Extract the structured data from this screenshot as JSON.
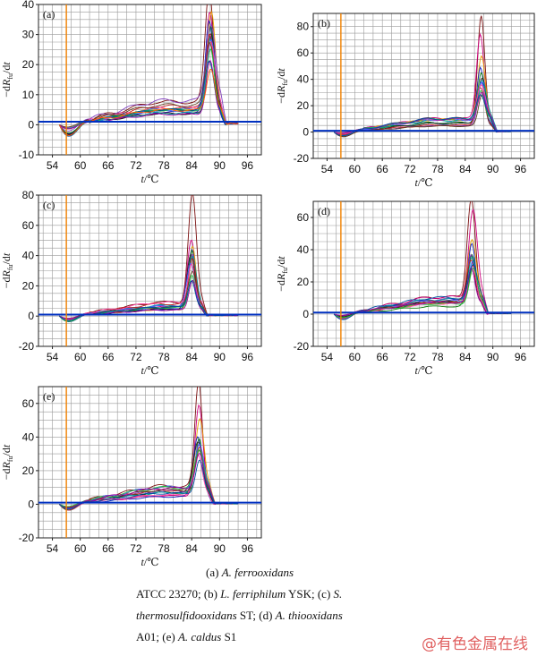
{
  "chart_data": [
    {
      "type": "line",
      "panel_label": "(a)",
      "xlabel_var": "t",
      "xlabel_unit": "/℃",
      "ylabel_prefix": "−d",
      "ylabel_var": "R",
      "ylabel_sub": "fu",
      "ylabel_suffix": "/dt",
      "x_ticks": [
        54,
        60,
        66,
        72,
        78,
        84,
        90,
        96
      ],
      "y_ticks": [
        -10,
        0,
        10,
        20,
        30,
        40
      ],
      "xlim": [
        51,
        99
      ],
      "ylim": [
        -10,
        40
      ],
      "threshold_y": 1,
      "marker_x": 57,
      "plateau": 6,
      "peak_x": 88,
      "peak_heights": [
        37,
        34,
        32,
        30,
        28,
        27,
        26,
        25,
        24,
        23,
        22,
        21,
        20,
        18,
        16,
        14
      ],
      "peak_width": 1.3,
      "end_x": 94
    },
    {
      "type": "line",
      "panel_label": "(b)",
      "xlabel_var": "t",
      "xlabel_unit": "/℃",
      "ylabel_prefix": "−d",
      "ylabel_var": "R",
      "ylabel_sub": "fu",
      "ylabel_suffix": "/dt",
      "x_ticks": [
        54,
        60,
        66,
        72,
        78,
        84,
        90,
        96
      ],
      "y_ticks": [
        -20,
        0,
        20,
        40,
        60,
        80
      ],
      "xlim": [
        51,
        99
      ],
      "ylim": [
        -20,
        90
      ],
      "threshold_y": 1,
      "marker_x": 57,
      "plateau": 8,
      "peak_x": 87.5,
      "peak_heights": [
        78,
        65,
        48,
        42,
        38,
        35,
        33,
        31,
        29,
        28,
        26,
        24,
        22,
        20,
        18
      ],
      "peak_width": 1.2,
      "end_x": 94
    },
    {
      "type": "line",
      "panel_label": "(c)",
      "xlabel_var": "t",
      "xlabel_unit": "/℃",
      "ylabel_prefix": "−d",
      "ylabel_var": "R",
      "ylabel_sub": "fu",
      "ylabel_suffix": "/dt",
      "x_ticks": [
        54,
        60,
        66,
        72,
        78,
        84,
        90,
        96
      ],
      "y_ticks": [
        -20,
        0,
        20,
        40,
        60,
        80
      ],
      "xlim": [
        51,
        99
      ],
      "ylim": [
        -20,
        80
      ],
      "threshold_y": 1,
      "marker_x": 57,
      "plateau": 7,
      "peak_x": 84,
      "peak_heights": [
        72,
        44,
        42,
        40,
        38,
        36,
        34,
        32,
        30,
        28,
        26,
        24,
        22,
        20,
        18
      ],
      "peak_width": 1.1,
      "end_x": 94
    },
    {
      "type": "line",
      "panel_label": "(d)",
      "xlabel_var": "t",
      "xlabel_unit": "/℃",
      "ylabel_prefix": "−d",
      "ylabel_var": "R",
      "ylabel_sub": "fu",
      "ylabel_suffix": "/dt",
      "x_ticks": [
        54,
        60,
        66,
        72,
        78,
        84,
        90,
        96
      ],
      "y_ticks": [
        -20,
        0,
        20,
        40,
        60
      ],
      "xlim": [
        51,
        99
      ],
      "ylim": [
        -20,
        70
      ],
      "threshold_y": 1,
      "marker_x": 57,
      "plateau": 8,
      "peak_x": 85.5,
      "peak_heights": [
        62,
        55,
        40,
        36,
        32,
        30,
        28,
        27,
        26,
        25,
        24,
        23,
        22,
        21,
        20
      ],
      "peak_width": 1.2,
      "end_x": 94
    },
    {
      "type": "line",
      "panel_label": "(e)",
      "xlabel_var": "t",
      "xlabel_unit": "/℃",
      "ylabel_prefix": "−d",
      "ylabel_var": "R",
      "ylabel_sub": "fu",
      "ylabel_suffix": "/dt",
      "x_ticks": [
        54,
        60,
        66,
        72,
        78,
        84,
        90,
        96
      ],
      "y_ticks": [
        -20,
        0,
        20,
        40,
        60
      ],
      "xlim": [
        51,
        99
      ],
      "ylim": [
        -20,
        70
      ],
      "threshold_y": 1,
      "marker_x": 57,
      "plateau": 8,
      "peak_x": 85.5,
      "peak_heights": [
        62,
        54,
        40,
        36,
        32,
        30,
        28,
        27,
        26,
        25,
        24,
        23,
        22,
        21,
        20
      ],
      "peak_width": 1.2,
      "end_x": 94
    }
  ],
  "styles": {
    "curve_colors": [
      "#7a1010",
      "#d00080",
      "#e8a000",
      "#1020c0",
      "#108010",
      "#202020",
      "#8040c0",
      "#00a0a0",
      "#c02020",
      "#4060ff",
      "#ff40a0",
      "#604020",
      "#20c040",
      "#a000a0",
      "#0050a0",
      "#ff6000"
    ],
    "marker_color": "#f08000",
    "threshold_color": "#0030c0",
    "grid_color": "#9a9a9a"
  },
  "caption": {
    "a_label": "(a) ",
    "a_species": "A. ferrooxidans",
    "l2_strain_a": "ATCC  23270;  (b) ",
    "l2_species_b": "L.  ferriphilum",
    "l2_strain_b": " YSK;  (c) ",
    "l2_species_c": "S.",
    "l3_species_c": "thermosulfidooxidans",
    "l3_strain_c": "  ST;   (d)  ",
    "l3_species_d": "A.   thiooxidans",
    "l4_strain_d": "A01; (e) ",
    "l4_species_e": "A. caldus",
    "l4_strain_e": " S1"
  },
  "watermark": "@有色金属在线"
}
